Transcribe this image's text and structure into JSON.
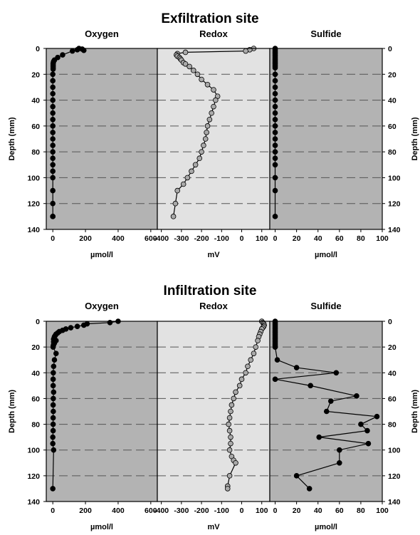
{
  "chart_data": [
    {
      "type": "scatter",
      "title": "Exfiltration site",
      "ylabel": "Depth (mm)",
      "ylim": [
        140,
        0
      ],
      "yticks": [
        0,
        20,
        40,
        60,
        80,
        100,
        120,
        140
      ],
      "panels": [
        {
          "title": "Oxygen",
          "xlabel": "µmol/l",
          "xlim": [
            -40,
            640
          ],
          "xticks": [
            0,
            200,
            400,
            600
          ],
          "background": "#b3b3b3",
          "marker_color": "#000000",
          "x": [
            160,
            180,
            150,
            190,
            120,
            60,
            30,
            10,
            5,
            3,
            2,
            2,
            2,
            2,
            2,
            0,
            0,
            0,
            0,
            0,
            0,
            0,
            0,
            0,
            0,
            0,
            0,
            0,
            0,
            0,
            0,
            0,
            0,
            0,
            0,
            0
          ],
          "y": [
            0,
            0.5,
            1,
            1.5,
            2,
            5,
            7,
            9,
            10,
            11,
            12,
            13,
            14,
            15,
            16,
            20,
            25,
            30,
            35,
            40,
            45,
            50,
            55,
            60,
            65,
            70,
            75,
            80,
            85,
            90,
            95,
            100,
            110,
            120,
            130,
            130
          ]
        },
        {
          "title": "Redox",
          "xlabel": "mV",
          "xlim": [
            -420,
            140
          ],
          "xticks": [
            -400,
            -300,
            -200,
            -100,
            0,
            100
          ],
          "background": "#e2e2e2",
          "marker_color": "#a9a9a9",
          "x": [
            60,
            40,
            20,
            -280,
            -320,
            -325,
            -320,
            -310,
            -305,
            -300,
            -290,
            -280,
            -260,
            -240,
            -220,
            -200,
            -170,
            -140,
            -120,
            -130,
            -140,
            -150,
            -160,
            -170,
            -175,
            -180,
            -190,
            -200,
            -210,
            -230,
            -250,
            -270,
            -290,
            -320,
            -330,
            -340
          ],
          "y": [
            0,
            1,
            2,
            3,
            4,
            5,
            6,
            7,
            8,
            9,
            11,
            12,
            14,
            17,
            20,
            24,
            28,
            32,
            37,
            40,
            45,
            50,
            55,
            60,
            65,
            70,
            75,
            80,
            85,
            90,
            95,
            100,
            105,
            110,
            120,
            130
          ]
        },
        {
          "title": "Sulfide",
          "xlabel": "µmol/l",
          "xlim": [
            -5,
            100
          ],
          "xticks": [
            0,
            20,
            40,
            60,
            80,
            100
          ],
          "background": "#b3b3b3",
          "marker_color": "#000000",
          "x": [
            0,
            0,
            0,
            0,
            0,
            0,
            0,
            0,
            0,
            0,
            0,
            0,
            0,
            0,
            0,
            0,
            0,
            0,
            0,
            0,
            0,
            0,
            0,
            0,
            0,
            0,
            0,
            0,
            0,
            0,
            0,
            0,
            0,
            0
          ],
          "y": [
            0,
            1,
            2,
            3,
            4,
            5,
            6,
            7,
            8,
            9,
            10,
            11,
            12,
            13,
            14,
            15,
            20,
            25,
            30,
            35,
            40,
            45,
            50,
            55,
            60,
            65,
            70,
            75,
            80,
            85,
            90,
            100,
            110,
            130
          ]
        }
      ]
    },
    {
      "type": "scatter",
      "title": "Infiltration site",
      "ylabel": "Depth (mm)",
      "ylim": [
        140,
        0
      ],
      "yticks": [
        0,
        20,
        40,
        60,
        80,
        100,
        120,
        140
      ],
      "panels": [
        {
          "title": "Oxygen",
          "xlabel": "µmol/l",
          "xlim": [
            -40,
            640
          ],
          "xticks": [
            0,
            200,
            400,
            600
          ],
          "background": "#b3b3b3",
          "marker_color": "#000000",
          "x": [
            400,
            350,
            210,
            190,
            150,
            110,
            80,
            60,
            40,
            30,
            20,
            15,
            10,
            8,
            5,
            20,
            5,
            10,
            5,
            3,
            2,
            20,
            10,
            5,
            3,
            2,
            2,
            5,
            3,
            2,
            3,
            2,
            2,
            2,
            0,
            0,
            5,
            0
          ],
          "y": [
            0,
            1,
            2,
            3,
            4,
            5,
            6,
            7,
            8,
            9,
            10,
            11,
            12,
            13,
            14,
            15,
            16,
            17,
            18,
            19,
            20,
            25,
            30,
            35,
            40,
            45,
            50,
            55,
            60,
            65,
            70,
            75,
            80,
            85,
            90,
            95,
            100,
            130
          ]
        },
        {
          "title": "Redox",
          "xlabel": "mV",
          "xlim": [
            -420,
            140
          ],
          "xticks": [
            -400,
            -300,
            -200,
            -100,
            0,
            100
          ],
          "background": "#e2e2e2",
          "marker_color": "#a9a9a9",
          "x": [
            100,
            105,
            110,
            112,
            110,
            105,
            100,
            95,
            90,
            85,
            80,
            70,
            60,
            45,
            30,
            20,
            0,
            -10,
            -30,
            -40,
            -50,
            -55,
            -60,
            -65,
            -60,
            -55,
            -55,
            -60,
            -50,
            -40,
            -30,
            -60,
            -70,
            -70
          ],
          "y": [
            0,
            1,
            2,
            3,
            4,
            5,
            6,
            8,
            10,
            12,
            15,
            20,
            25,
            30,
            35,
            40,
            45,
            50,
            55,
            60,
            65,
            70,
            75,
            80,
            85,
            90,
            95,
            100,
            105,
            108,
            110,
            120,
            128,
            130
          ]
        },
        {
          "title": "Sulfide",
          "xlabel": "µmol/l",
          "xlim": [
            -5,
            100
          ],
          "xticks": [
            0,
            20,
            40,
            60,
            80,
            100
          ],
          "background": "#b3b3b3",
          "marker_color": "#000000",
          "x": [
            0,
            0,
            0,
            0,
            0,
            0,
            0,
            0,
            0,
            0,
            0,
            0,
            0,
            0,
            0,
            0,
            0,
            0,
            0,
            0,
            0,
            2,
            20,
            57,
            0,
            33,
            76,
            52,
            48,
            95,
            80,
            86,
            41,
            87,
            60,
            60,
            20,
            32
          ],
          "y": [
            0,
            1,
            2,
            3,
            4,
            5,
            6,
            7,
            8,
            9,
            10,
            11,
            12,
            13,
            14,
            15,
            16,
            17,
            18,
            19,
            20,
            30,
            36,
            40,
            45,
            50,
            58,
            62,
            70,
            74,
            80,
            85,
            90,
            95,
            100,
            110,
            120,
            130
          ]
        }
      ]
    }
  ]
}
